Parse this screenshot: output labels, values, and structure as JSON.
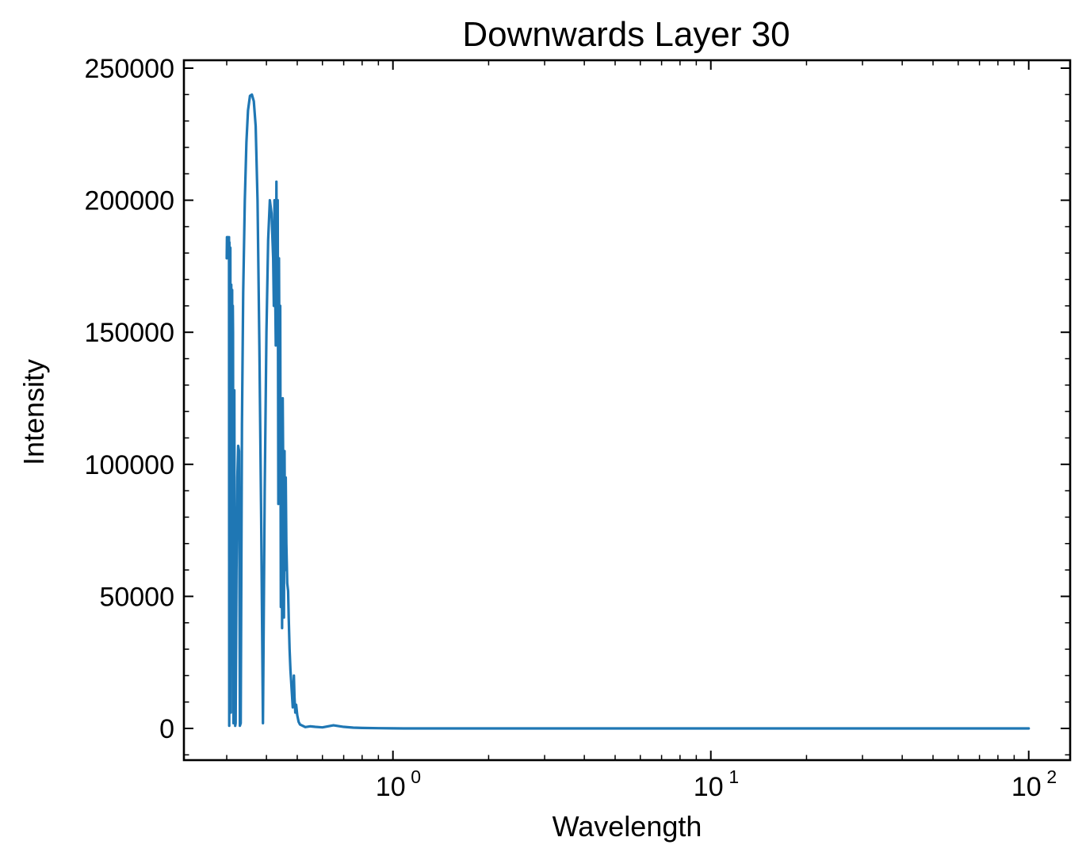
{
  "chart_data": {
    "type": "line",
    "title": "Downwards Layer 30",
    "xlabel": "Wavelength",
    "ylabel": "Intensity",
    "xscale": "log",
    "xlim": [
      0.22,
      135
    ],
    "ylim": [
      -12000,
      253000
    ],
    "grid": false,
    "legend": "none",
    "line_color": "#1f77b4",
    "x_ticks": [
      {
        "base": "10",
        "exp": "0",
        "value": 1
      },
      {
        "base": "10",
        "exp": "1",
        "value": 10
      },
      {
        "base": "10",
        "exp": "2",
        "value": 100
      }
    ],
    "y_ticks": [
      {
        "label": "0",
        "value": 0
      },
      {
        "label": "50000",
        "value": 50000
      },
      {
        "label": "100000",
        "value": 100000
      },
      {
        "label": "150000",
        "value": 150000
      },
      {
        "label": "200000",
        "value": 200000
      },
      {
        "label": "250000",
        "value": 250000
      }
    ],
    "series": [
      {
        "name": "",
        "x": [
          0.3,
          0.3005,
          0.301,
          0.3015,
          0.302,
          0.303,
          0.304,
          0.305,
          0.3055,
          0.306,
          0.307,
          0.308,
          0.309,
          0.31,
          0.311,
          0.312,
          0.313,
          0.3135,
          0.314,
          0.315,
          0.316,
          0.317,
          0.318,
          0.319,
          0.32,
          0.322,
          0.324,
          0.326,
          0.328,
          0.33,
          0.332,
          0.335,
          0.338,
          0.342,
          0.346,
          0.35,
          0.355,
          0.36,
          0.365,
          0.37,
          0.375,
          0.38,
          0.385,
          0.39,
          0.395,
          0.4,
          0.405,
          0.41,
          0.415,
          0.42,
          0.422,
          0.424,
          0.426,
          0.428,
          0.43,
          0.432,
          0.434,
          0.436,
          0.438,
          0.44,
          0.442,
          0.444,
          0.446,
          0.448,
          0.45,
          0.452,
          0.454,
          0.456,
          0.458,
          0.46,
          0.462,
          0.465,
          0.468,
          0.47,
          0.473,
          0.476,
          0.48,
          0.484,
          0.488,
          0.49,
          0.493,
          0.496,
          0.5,
          0.505,
          0.51,
          0.52,
          0.53,
          0.55,
          0.57,
          0.6,
          0.65,
          0.7,
          0.75,
          0.8,
          0.9,
          1.0,
          1.1,
          1.2,
          1.5,
          2,
          3,
          5,
          10,
          20,
          50,
          100
        ],
        "y": [
          178000,
          186000,
          181000,
          186000,
          180000,
          186000,
          180000,
          186000,
          1000,
          184000,
          155000,
          182000,
          6000,
          168000,
          120000,
          166000,
          56000,
          160000,
          150000,
          2000,
          82000,
          128000,
          30000,
          1000,
          2000,
          60000,
          95000,
          107000,
          105000,
          1000,
          2000,
          115000,
          165000,
          200000,
          222000,
          234000,
          239500,
          240000,
          237500,
          228000,
          200000,
          145000,
          80000,
          2000,
          90000,
          150000,
          185000,
          200000,
          195000,
          178000,
          160000,
          200000,
          168000,
          145000,
          207000,
          160000,
          200000,
          85000,
          178000,
          125000,
          160000,
          46000,
          120000,
          38000,
          125000,
          92000,
          42000,
          105000,
          60000,
          95000,
          70000,
          55000,
          52000,
          42000,
          30000,
          22000,
          15000,
          8000,
          20000,
          12000,
          6000,
          9000,
          5000,
          2500,
          1500,
          1000,
          500,
          800,
          600,
          400,
          1200,
          600,
          300,
          200,
          100,
          50,
          0,
          0,
          0,
          0,
          0,
          0,
          0,
          0,
          0,
          0
        ]
      }
    ]
  }
}
